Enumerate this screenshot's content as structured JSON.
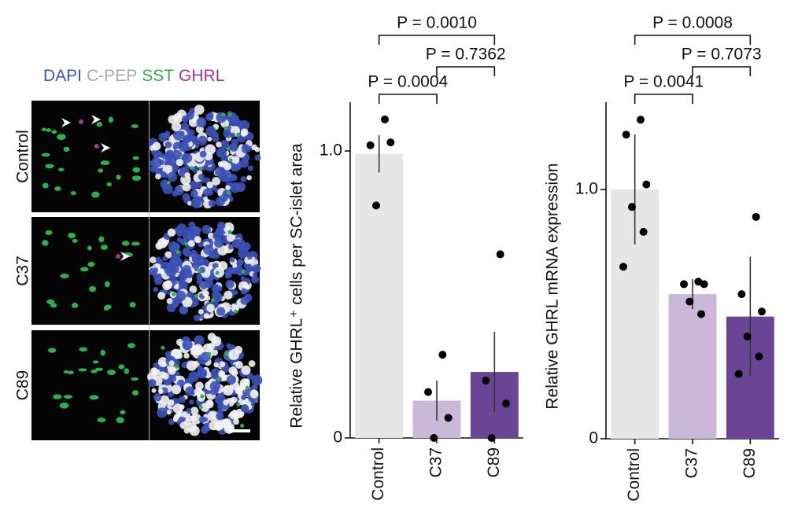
{
  "image_panel": {
    "legend": [
      {
        "name": "DAPI",
        "color": "#3d52b8"
      },
      {
        "name": "C-PEP",
        "color": "#a8a8a8"
      },
      {
        "name": "SST",
        "color": "#2fae4e"
      },
      {
        "name": "GHRL",
        "color": "#a2358f"
      }
    ],
    "rows": [
      "Control",
      "C37",
      "C89"
    ]
  },
  "chart_data": [
    {
      "type": "bar",
      "y_label": "Relative GHRL⁺ cells per SC-islet area",
      "categories": [
        "Control",
        "C37",
        "C89"
      ],
      "colors": [
        "#e6e6e6",
        "#cbb8d8",
        "#6b4595"
      ],
      "values": [
        0.99,
        0.13,
        0.23
      ],
      "errors": [
        0.065,
        0.07,
        0.14
      ],
      "points": [
        [
          1.11,
          1.02,
          1.03,
          0.81
        ],
        [
          0.29,
          0.16,
          0.07,
          0
        ],
        [
          0.64,
          0.2,
          0.12,
          0
        ]
      ],
      "ylim": [
        0,
        1.17
      ],
      "yticks": [
        0,
        {
          "value": 1,
          "label": "1.0"
        }
      ],
      "comparisons": [
        {
          "from": "Control",
          "to": "C89",
          "label": "P = 0.0010"
        },
        {
          "from": "C37",
          "to": "C89",
          "label": "P = 0.7362"
        },
        {
          "from": "Control",
          "to": "C37",
          "label": "P = 0.0004"
        }
      ]
    },
    {
      "type": "bar",
      "y_label": "Relative GHRL mRNA expression",
      "categories": [
        "Control",
        "C37",
        "C89"
      ],
      "colors": [
        "#e6e6e6",
        "#cbb8d8",
        "#6b4595"
      ],
      "values": [
        1.0,
        0.58,
        0.49
      ],
      "errors": [
        0.22,
        0.06,
        0.24
      ],
      "points": [
        [
          1.28,
          1.22,
          1.02,
          0.93,
          0.83,
          0.69
        ],
        [
          0.63,
          0.62,
          0.62,
          0.55,
          0.5
        ],
        [
          0.89,
          0.58,
          0.51,
          0.41,
          0.33,
          0.26
        ]
      ],
      "ylim": [
        0,
        1.35
      ],
      "yticks": [
        0,
        {
          "value": 1,
          "label": "1.0"
        }
      ],
      "comparisons": [
        {
          "from": "Control",
          "to": "C89",
          "label": "P = 0.0008"
        },
        {
          "from": "C37",
          "to": "C89",
          "label": "P = 0.7073"
        },
        {
          "from": "Control",
          "to": "C37",
          "label": "P = 0.0041"
        }
      ]
    }
  ]
}
